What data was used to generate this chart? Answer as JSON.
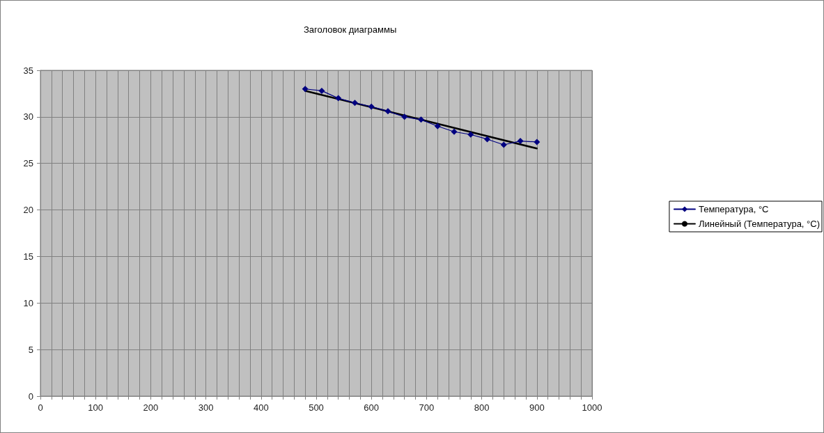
{
  "chart_data": {
    "type": "line",
    "title": "Заголовок диаграммы",
    "series": [
      {
        "name": "Температура, °C",
        "color": "#000080",
        "marker": "diamond",
        "x": [
          480,
          510,
          540,
          570,
          600,
          630,
          660,
          690,
          720,
          750,
          780,
          810,
          840,
          870,
          900
        ],
        "values": [
          33.0,
          32.8,
          32.0,
          31.5,
          31.1,
          30.6,
          30.0,
          29.7,
          29.0,
          28.4,
          28.1,
          27.6,
          27.0,
          27.4,
          27.3
        ]
      },
      {
        "name": "Линейный (Температура, °C)",
        "color": "#000000",
        "marker": "none",
        "x": [
          480,
          900
        ],
        "values": [
          32.8,
          26.6
        ]
      }
    ],
    "xlim": [
      0,
      1000
    ],
    "xticks": [
      0,
      {
        "value": 20,
        "label": null
      },
      {
        "value": 40,
        "label": null
      },
      {
        "value": 60,
        "label": null
      },
      {
        "value": 80,
        "label": null
      },
      100,
      {
        "value": 120,
        "label": null
      },
      {
        "value": 140,
        "label": null
      },
      {
        "value": 160,
        "label": null
      },
      {
        "value": 180,
        "label": null
      },
      200,
      {
        "value": 220,
        "label": null
      },
      {
        "value": 240,
        "label": null
      },
      {
        "value": 260,
        "label": null
      },
      {
        "value": 280,
        "label": null
      },
      300,
      {
        "value": 320,
        "label": null
      },
      {
        "value": 340,
        "label": null
      },
      {
        "value": 360,
        "label": null
      },
      {
        "value": 380,
        "label": null
      },
      400,
      {
        "value": 420,
        "label": null
      },
      {
        "value": 440,
        "label": null
      },
      {
        "value": 460,
        "label": null
      },
      {
        "value": 480,
        "label": null
      },
      500,
      {
        "value": 520,
        "label": null
      },
      {
        "value": 540,
        "label": null
      },
      {
        "value": 560,
        "label": null
      },
      {
        "value": 580,
        "label": null
      },
      600,
      {
        "value": 620,
        "label": null
      },
      {
        "value": 640,
        "label": null
      },
      {
        "value": 660,
        "label": null
      },
      {
        "value": 680,
        "label": null
      },
      700,
      {
        "value": 720,
        "label": null
      },
      {
        "value": 740,
        "label": null
      },
      {
        "value": 760,
        "label": null
      },
      {
        "value": 780,
        "label": null
      },
      800,
      {
        "value": 820,
        "label": null
      },
      {
        "value": 840,
        "label": null
      },
      {
        "value": 860,
        "label": null
      },
      {
        "value": 880,
        "label": null
      },
      900,
      {
        "value": 920,
        "label": null
      },
      {
        "value": 940,
        "label": null
      },
      {
        "value": 960,
        "label": null
      },
      {
        "value": 980,
        "label": null
      },
      1000
    ],
    "ylim": [
      0,
      35
    ],
    "yticks": [
      0,
      5,
      10,
      15,
      20,
      25,
      30,
      35
    ],
    "grid": true,
    "legend": "right",
    "line_style": "solid"
  }
}
